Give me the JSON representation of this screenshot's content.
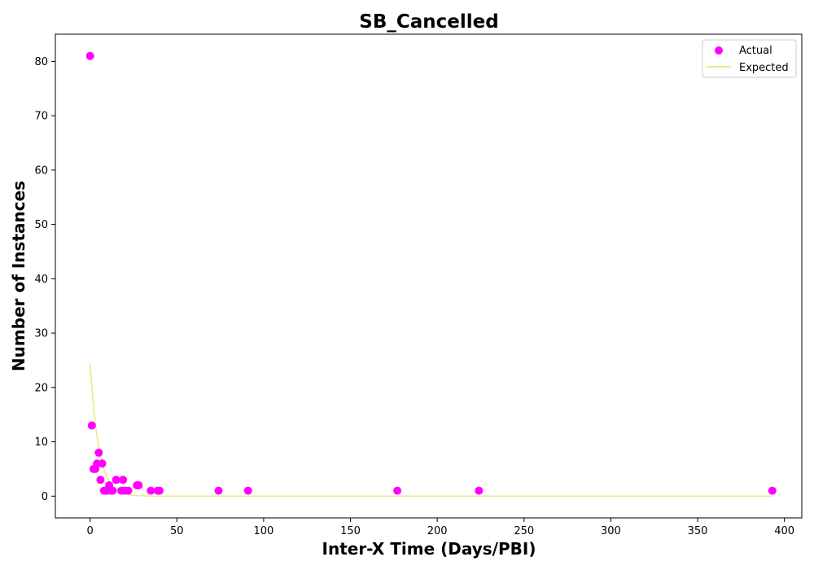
{
  "chart_data": {
    "type": "scatter",
    "title": "SB_Cancelled",
    "xlabel": "Inter-X Time (Days/PBI)",
    "ylabel": "Number of Instances",
    "xlim": [
      -20,
      410
    ],
    "ylim": [
      -4,
      85
    ],
    "xticks": [
      0,
      50,
      100,
      150,
      200,
      250,
      300,
      350,
      400
    ],
    "yticks": [
      0,
      10,
      20,
      30,
      40,
      50,
      60,
      70,
      80
    ],
    "grid": false,
    "legend_placement": "top-right",
    "series": [
      {
        "name": "Actual",
        "kind": "scatter",
        "color": "#ff00ff",
        "x": [
          0,
          1,
          2,
          3,
          4,
          5,
          6,
          7,
          8,
          9,
          10,
          11,
          12,
          13,
          15,
          18,
          19,
          20,
          22,
          27,
          28,
          35,
          39,
          40,
          74,
          91,
          177,
          224,
          393
        ],
        "y": [
          81,
          13,
          5,
          5,
          6,
          8,
          3,
          6,
          1,
          1,
          1,
          2,
          1,
          1,
          3,
          1,
          3,
          1,
          1,
          2,
          2,
          1,
          1,
          1,
          1,
          1,
          1,
          1,
          1
        ]
      },
      {
        "name": "Expected",
        "kind": "line",
        "color": "#f0e68c",
        "model": "exponential",
        "y0": 24.5,
        "decay_rate": 0.2,
        "x_range": [
          0,
          393
        ]
      }
    ]
  }
}
